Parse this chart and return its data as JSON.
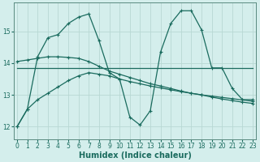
{
  "bg_color": "#d4eeec",
  "grid_color": "#b8d8d4",
  "line_color": "#1a6b5e",
  "marker": "+",
  "marker_size": 3,
  "marker_lw": 0.8,
  "xlabel": "Humidex (Indice chaleur)",
  "xlabel_fontsize": 7,
  "yticks": [
    12,
    13,
    14,
    15
  ],
  "xticks": [
    0,
    1,
    2,
    3,
    4,
    5,
    6,
    7,
    8,
    9,
    10,
    11,
    12,
    13,
    14,
    15,
    16,
    17,
    18,
    19,
    20,
    21,
    22,
    23
  ],
  "xlim": [
    -0.3,
    23.3
  ],
  "ylim": [
    11.6,
    15.9
  ],
  "lw": 0.9,
  "line1_x": [
    0,
    1,
    2,
    3,
    4,
    5,
    6,
    7,
    8,
    9,
    10,
    11,
    12,
    13,
    14,
    15,
    16,
    17,
    18,
    19,
    20,
    21,
    22,
    23
  ],
  "line1_y": [
    12.0,
    12.55,
    12.85,
    13.05,
    13.25,
    13.45,
    13.6,
    13.7,
    13.65,
    13.6,
    13.5,
    13.42,
    13.35,
    13.28,
    13.22,
    13.16,
    13.1,
    13.05,
    13.0,
    12.96,
    12.92,
    12.88,
    12.84,
    12.8
  ],
  "line2_x": [
    0,
    23
  ],
  "line2_y": [
    13.85,
    13.85
  ],
  "line3_x": [
    0,
    1,
    2,
    3,
    4,
    5,
    6,
    7,
    8,
    9,
    10,
    11,
    12,
    13,
    14,
    15,
    16,
    17,
    18,
    19,
    20,
    21,
    22,
    23
  ],
  "line3_y": [
    14.05,
    14.1,
    14.15,
    14.2,
    14.2,
    14.18,
    14.15,
    14.05,
    13.9,
    13.75,
    13.65,
    13.55,
    13.45,
    13.35,
    13.28,
    13.2,
    13.12,
    13.05,
    13.0,
    12.93,
    12.87,
    12.82,
    12.77,
    12.73
  ],
  "line4_x": [
    0,
    1,
    2,
    3,
    4,
    5,
    6,
    7,
    8,
    9,
    10,
    11,
    12,
    13,
    14,
    15,
    16,
    17,
    18,
    19,
    20,
    21,
    22,
    23
  ],
  "line4_y": [
    12.0,
    12.55,
    14.2,
    14.8,
    14.9,
    15.25,
    15.45,
    15.55,
    14.7,
    13.7,
    13.5,
    12.3,
    12.05,
    12.5,
    14.35,
    15.25,
    15.65,
    15.65,
    15.05,
    13.85,
    13.85,
    13.2,
    12.85,
    12.85
  ]
}
